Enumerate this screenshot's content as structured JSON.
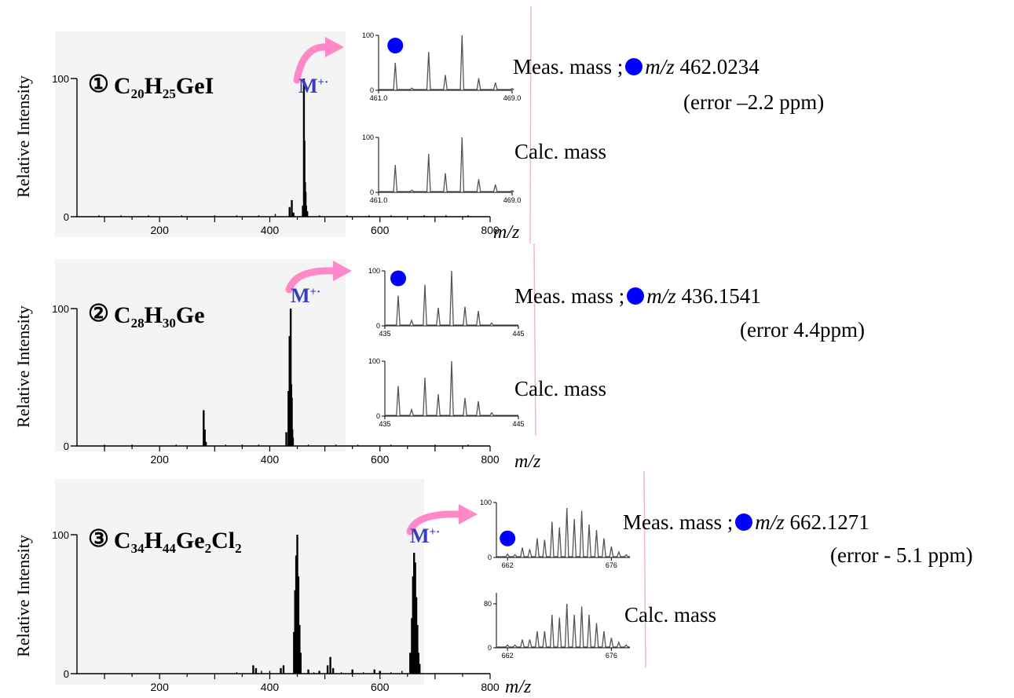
{
  "colors": {
    "marker": "#0000ff",
    "arrow": "#ff88c8",
    "ion_label": "#3b3bbd",
    "divider": "#f2b8c0"
  },
  "icons": {
    "marker": "blue-circle-icon",
    "arrow": "curved-arrow-icon"
  },
  "chart_data": [
    {
      "type": "line",
      "number": "①",
      "formula": {
        "parts": [
          [
            "C",
            "20"
          ],
          [
            "H",
            "25"
          ],
          [
            "Ge",
            "I"
          ]
        ]
      },
      "ylabel": "Relative Intensity",
      "xlabel": "m/z",
      "xlim": [
        50,
        800
      ],
      "ylim": [
        0,
        100
      ],
      "xticks": [
        "200",
        "400",
        "600",
        "800"
      ],
      "yticks": [
        "100",
        "0"
      ],
      "ion_label": {
        "main": "M",
        "sup": "+·"
      },
      "peaks": [
        [
          436,
          7
        ],
        [
          440,
          12
        ],
        [
          443,
          3
        ],
        [
          460,
          8
        ],
        [
          462,
          100
        ],
        [
          463,
          55
        ],
        [
          464,
          25
        ],
        [
          465,
          18
        ],
        [
          466,
          8
        ],
        [
          468,
          4
        ]
      ],
      "noise": [
        [
          90,
          1
        ],
        [
          130,
          1
        ],
        [
          180,
          1
        ],
        [
          240,
          1
        ],
        [
          300,
          1
        ],
        [
          340,
          1
        ],
        [
          380,
          1
        ],
        [
          410,
          2
        ],
        [
          490,
          1
        ],
        [
          540,
          1
        ],
        [
          580,
          1
        ],
        [
          620,
          1
        ],
        [
          680,
          1
        ],
        [
          720,
          1
        ],
        [
          760,
          1
        ]
      ],
      "meas_label": "Meas. mass ;",
      "meas_mz_label": "m/z",
      "meas_value": "462.0234",
      "error": "(error –2.2 ppm)",
      "calc_label": "Calc. mass",
      "insets": {
        "meas": {
          "xlim": [
            461.0,
            469.0
          ],
          "xticks": [
            "461.0",
            "469.0"
          ],
          "yticks": [
            "100",
            "0"
          ],
          "peaks": [
            [
              462,
              50
            ],
            [
              463,
              4
            ],
            [
              464,
              70
            ],
            [
              465,
              28
            ],
            [
              466,
              100
            ],
            [
              467,
              22
            ],
            [
              468,
              14
            ],
            [
              469,
              3
            ]
          ]
        },
        "calc": {
          "xlim": [
            461.0,
            469.0
          ],
          "xticks": [
            "461.0",
            "469.0"
          ],
          "yticks": [
            "100",
            "0"
          ],
          "peaks": [
            [
              462,
              50
            ],
            [
              463,
              4
            ],
            [
              464,
              70
            ],
            [
              465,
              35
            ],
            [
              466,
              100
            ],
            [
              467,
              24
            ],
            [
              468,
              14
            ],
            [
              469,
              3
            ]
          ]
        }
      }
    },
    {
      "type": "line",
      "number": "②",
      "formula": {
        "parts": [
          [
            "C",
            "28"
          ],
          [
            "H",
            "30"
          ],
          [
            "Ge",
            ""
          ]
        ]
      },
      "ylabel": "Relative Intensity",
      "xlabel": "m/z",
      "xlim": [
        50,
        800
      ],
      "ylim": [
        0,
        100
      ],
      "xticks": [
        "200",
        "400",
        "600",
        "800"
      ],
      "yticks": [
        "100",
        "0"
      ],
      "ion_label": {
        "main": "M",
        "sup": "+·"
      },
      "peaks": [
        [
          280,
          26
        ],
        [
          282,
          12
        ],
        [
          284,
          3
        ],
        [
          430,
          10
        ],
        [
          434,
          40
        ],
        [
          436,
          80
        ],
        [
          437,
          65
        ],
        [
          438,
          100
        ],
        [
          439,
          45
        ],
        [
          440,
          35
        ],
        [
          441,
          12
        ],
        [
          442,
          6
        ]
      ],
      "noise": [
        [
          100,
          1
        ],
        [
          150,
          1
        ],
        [
          230,
          1
        ],
        [
          320,
          1
        ],
        [
          350,
          1
        ],
        [
          380,
          1
        ],
        [
          470,
          1
        ],
        [
          520,
          1
        ],
        [
          560,
          1
        ],
        [
          620,
          1
        ],
        [
          700,
          1
        ],
        [
          760,
          1
        ]
      ],
      "meas_label": "Meas. mass ;",
      "meas_mz_label": "m/z",
      "meas_value": "436.1541",
      "error": "(error 4.4ppm)",
      "calc_label": "Calc. mass",
      "insets": {
        "meas": {
          "xlim": [
            435,
            445
          ],
          "xticks": [
            "435",
            "445"
          ],
          "yticks": [
            "100",
            "0"
          ],
          "peaks": [
            [
              436,
              55
            ],
            [
              437,
              10
            ],
            [
              438,
              75
            ],
            [
              439,
              33
            ],
            [
              440,
              100
            ],
            [
              441,
              35
            ],
            [
              442,
              27
            ],
            [
              443,
              5
            ]
          ]
        },
        "calc": {
          "xlim": [
            435,
            445
          ],
          "xticks": [
            "435",
            "445"
          ],
          "yticks": [
            "100",
            "0"
          ],
          "peaks": [
            [
              436,
              55
            ],
            [
              437,
              12
            ],
            [
              438,
              70
            ],
            [
              439,
              40
            ],
            [
              440,
              100
            ],
            [
              441,
              33
            ],
            [
              442,
              27
            ],
            [
              443,
              6
            ]
          ]
        }
      }
    },
    {
      "type": "line",
      "number": "③",
      "formula": {
        "parts": [
          [
            "C",
            "34"
          ],
          [
            "H",
            "44"
          ],
          [
            "Ge",
            "2"
          ],
          [
            "Cl",
            "2"
          ]
        ]
      },
      "ylabel": "Relative Intensity",
      "xlabel": "m/z",
      "xlim": [
        50,
        800
      ],
      "ylim": [
        0,
        100
      ],
      "xticks": [
        "200",
        "400",
        "600",
        "800"
      ],
      "yticks": [
        "100",
        "0"
      ],
      "ion_label": {
        "main": "M",
        "sup": "+·"
      },
      "peaks": [
        [
          370,
          6
        ],
        [
          375,
          4
        ],
        [
          420,
          4
        ],
        [
          425,
          6
        ],
        [
          444,
          30
        ],
        [
          446,
          60
        ],
        [
          448,
          85
        ],
        [
          450,
          100
        ],
        [
          452,
          70
        ],
        [
          454,
          35
        ],
        [
          456,
          15
        ],
        [
          470,
          3
        ],
        [
          490,
          2
        ],
        [
          505,
          6
        ],
        [
          510,
          12
        ],
        [
          515,
          4
        ],
        [
          550,
          3
        ],
        [
          590,
          3
        ],
        [
          600,
          2
        ],
        [
          655,
          15
        ],
        [
          658,
          40
        ],
        [
          660,
          70
        ],
        [
          662,
          87
        ],
        [
          664,
          80
        ],
        [
          666,
          55
        ],
        [
          668,
          35
        ],
        [
          670,
          15
        ],
        [
          672,
          7
        ]
      ],
      "noise": [
        [
          340,
          1
        ],
        [
          385,
          2
        ],
        [
          400,
          2
        ],
        [
          480,
          1
        ],
        [
          530,
          1
        ],
        [
          570,
          1
        ],
        [
          620,
          1
        ],
        [
          640,
          2
        ]
      ],
      "meas_label": "Meas. mass ;",
      "meas_mz_label": "m/z",
      "meas_value": "662.1271",
      "error": "(error - 5.1 ppm)",
      "calc_label": "Calc. mass",
      "insets": {
        "meas": {
          "xlim": [
            660.5,
            678.5
          ],
          "xticks": [
            "662",
            "676"
          ],
          "yticks": [
            "100",
            "0"
          ],
          "peaks": [
            [
              662,
              6
            ],
            [
              663,
              5
            ],
            [
              664,
              18
            ],
            [
              665,
              15
            ],
            [
              666,
              35
            ],
            [
              667,
              32
            ],
            [
              668,
              65
            ],
            [
              669,
              55
            ],
            [
              670,
              90
            ],
            [
              671,
              70
            ],
            [
              672,
              85
            ],
            [
              673,
              60
            ],
            [
              674,
              50
            ],
            [
              675,
              35
            ],
            [
              676,
              20
            ],
            [
              677,
              10
            ],
            [
              678,
              5
            ]
          ]
        },
        "calc": {
          "xlim": [
            660.5,
            678.5
          ],
          "xticks": [
            "662",
            "676"
          ],
          "yticks": [
            "80",
            "0"
          ],
          "peaks": [
            [
              662,
              5
            ],
            [
              663,
              5
            ],
            [
              664,
              15
            ],
            [
              665,
              15
            ],
            [
              666,
              30
            ],
            [
              667,
              30
            ],
            [
              668,
              60
            ],
            [
              669,
              55
            ],
            [
              670,
              80
            ],
            [
              671,
              60
            ],
            [
              672,
              75
            ],
            [
              673,
              60
            ],
            [
              674,
              45
            ],
            [
              675,
              30
            ],
            [
              676,
              18
            ],
            [
              677,
              10
            ],
            [
              678,
              5
            ]
          ]
        }
      }
    }
  ]
}
